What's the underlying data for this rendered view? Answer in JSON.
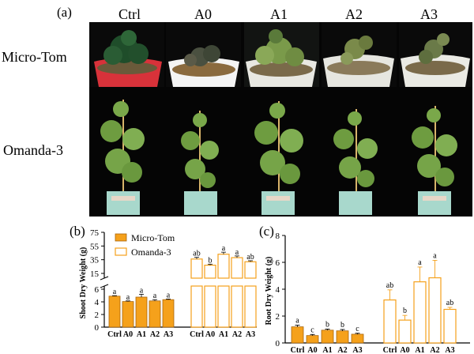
{
  "panel_a": {
    "letter": "(a)",
    "columns": [
      "Ctrl",
      "A0",
      "A1",
      "A2",
      "A3"
    ],
    "rows": [
      "Micro-Tom",
      "Omanda-3"
    ]
  },
  "chart_data": [
    {
      "type": "bar",
      "panel": "(b)",
      "ylabel": "Shoot Dry Weight (g)",
      "categories": [
        "Ctrl",
        "A0",
        "A1",
        "A2",
        "A3"
      ],
      "legend": [
        "Micro-Tom",
        "Omanda-3"
      ],
      "legend_position": "top-left",
      "broken_axis": true,
      "ylim_lower": [
        0,
        6
      ],
      "ylim_upper": [
        15,
        75
      ],
      "yticks": [
        0,
        2,
        4,
        6,
        15,
        35,
        55,
        75
      ],
      "series": [
        {
          "name": "Micro-Tom",
          "fill": "#f5a11b",
          "values": [
            4.9,
            4.05,
            4.75,
            4.15,
            4.35
          ],
          "errors": [
            0.08,
            0.1,
            0.45,
            0.2,
            0.1
          ],
          "letters": [
            "a",
            "a",
            "a",
            "a",
            "a"
          ]
        },
        {
          "name": "Omanda-3",
          "fill": "#ffffff",
          "values": [
            36,
            27,
            43,
            38,
            32
          ],
          "errors": [
            2.5,
            1.5,
            3,
            2.5,
            1.5
          ],
          "letters": [
            "ab",
            "b",
            "a",
            "a",
            "ab"
          ]
        }
      ]
    },
    {
      "type": "bar",
      "panel": "(c)",
      "ylabel": "Root Dry Weight (g)",
      "categories": [
        "Ctrl",
        "A0",
        "A1",
        "A2",
        "A3"
      ],
      "ylim": [
        0,
        8
      ],
      "yticks": [
        0,
        2,
        4,
        6,
        8
      ],
      "series": [
        {
          "name": "Micro-Tom",
          "fill": "#f5a11b",
          "values": [
            1.2,
            0.55,
            0.95,
            0.9,
            0.65
          ],
          "errors": [
            0.12,
            0.08,
            0.08,
            0.1,
            0.07
          ],
          "letters": [
            "a",
            "c",
            "b",
            "b",
            "c"
          ]
        },
        {
          "name": "Omanda-3",
          "fill": "#ffffff",
          "values": [
            3.2,
            1.7,
            4.55,
            4.85,
            2.5
          ],
          "errors": [
            0.75,
            0.35,
            1.1,
            1.3,
            0.15
          ],
          "letters": [
            "ab",
            "b",
            "a",
            "a",
            "ab"
          ]
        }
      ]
    }
  ],
  "colors": {
    "orange": "#f5a11b",
    "orange_edge": "#a8650a"
  }
}
